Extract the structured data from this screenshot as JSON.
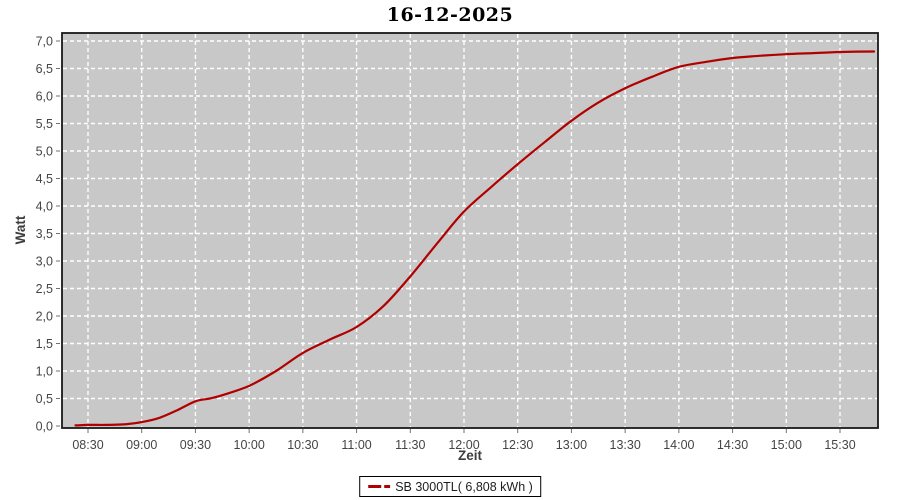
{
  "window": {
    "title": "16-12-2025"
  },
  "chart_data": {
    "type": "line",
    "title": "16-12-2025",
    "xlabel": "Zeit",
    "ylabel": "Watt",
    "x_ticks": [
      "08:30",
      "09:00",
      "09:30",
      "10:00",
      "10:30",
      "11:00",
      "11:30",
      "12:00",
      "12:30",
      "13:00",
      "13:30",
      "14:00",
      "14:30",
      "15:00",
      "15:30"
    ],
    "y_ticks": [
      "0,0",
      "0,5",
      "1,0",
      "1,5",
      "2,0",
      "2,5",
      "3,0",
      "3,5",
      "4,0",
      "4,5",
      "5,0",
      "5,5",
      "6,0",
      "6,5",
      "7,0"
    ],
    "y_tick_values": [
      0,
      0.5,
      1,
      1.5,
      2,
      2.5,
      3,
      3.5,
      4,
      4.5,
      5,
      5.5,
      6,
      6.5,
      7
    ],
    "ylim": [
      0,
      7
    ],
    "grid": true,
    "legend_position": "bottom",
    "plot_bg_color": "#c8c8c8",
    "grid_color": "#ffffff",
    "border_color": "#1a1a1a",
    "tick_color": "#707070",
    "series": [
      {
        "name": "SB 3000TL( 6,808 kWh )",
        "color": "#b00000",
        "points": [
          [
            "08:23",
            0.01
          ],
          [
            "08:30",
            0.02
          ],
          [
            "08:40",
            0.02
          ],
          [
            "08:50",
            0.03
          ],
          [
            "09:00",
            0.07
          ],
          [
            "09:10",
            0.15
          ],
          [
            "09:20",
            0.29
          ],
          [
            "09:30",
            0.45
          ],
          [
            "09:38",
            0.5
          ],
          [
            "09:45",
            0.56
          ],
          [
            "10:00",
            0.73
          ],
          [
            "10:15",
            1.0
          ],
          [
            "10:30",
            1.33
          ],
          [
            "10:45",
            1.57
          ],
          [
            "11:00",
            1.8
          ],
          [
            "11:15",
            2.18
          ],
          [
            "11:30",
            2.72
          ],
          [
            "11:45",
            3.32
          ],
          [
            "12:00",
            3.9
          ],
          [
            "12:15",
            4.34
          ],
          [
            "12:30",
            4.76
          ],
          [
            "12:45",
            5.16
          ],
          [
            "13:00",
            5.55
          ],
          [
            "13:15",
            5.88
          ],
          [
            "13:30",
            6.14
          ],
          [
            "13:45",
            6.35
          ],
          [
            "14:00",
            6.53
          ],
          [
            "14:15",
            6.62
          ],
          [
            "14:30",
            6.69
          ],
          [
            "14:45",
            6.73
          ],
          [
            "15:00",
            6.76
          ],
          [
            "15:15",
            6.78
          ],
          [
            "15:30",
            6.8
          ],
          [
            "15:49",
            6.81
          ]
        ]
      }
    ]
  }
}
